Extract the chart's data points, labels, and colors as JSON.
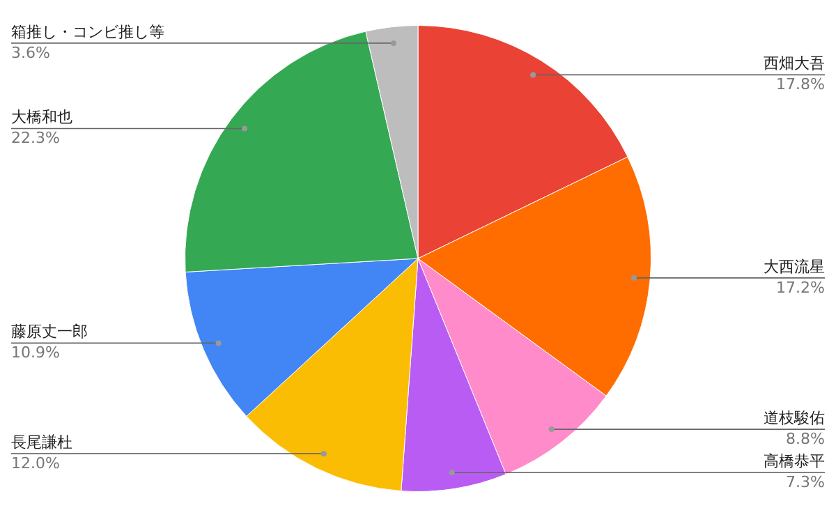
{
  "chart_data": {
    "type": "pie",
    "categories": [
      "西畑大吾",
      "大西流星",
      "道枝駿佑",
      "高橋恭平",
      "長尾謙杜",
      "藤原丈一郎",
      "大橋和也",
      "箱推し・コンビ推し等"
    ],
    "values": [
      17.8,
      17.2,
      8.8,
      7.3,
      12.0,
      10.9,
      22.3,
      3.6
    ],
    "value_labels": [
      "17.8%",
      "17.2%",
      "8.8%",
      "7.3%",
      "12.0%",
      "10.9%",
      "22.3%",
      "3.6%"
    ],
    "colors": [
      "#ea4335",
      "#ff6d01",
      "#ff8bcb",
      "#b95cf4",
      "#fbbc04",
      "#4285f4",
      "#34a853",
      "#bdbdbd"
    ]
  }
}
